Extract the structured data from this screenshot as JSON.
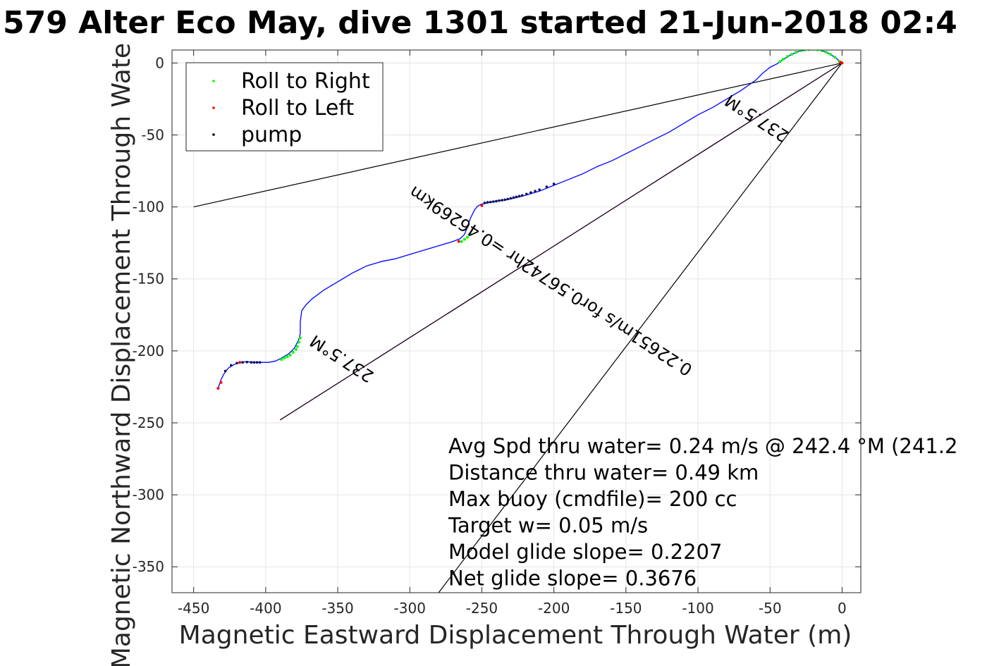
{
  "chart_data": {
    "type": "line",
    "title": "579 Alter Eco May, dive 1301 started 21-Jun-2018 02:4",
    "xlabel": "Magnetic Eastward Displacement Through Water (m)",
    "ylabel": "Magnetic Northward Displacement Through Wate",
    "xlim": [
      -465,
      13
    ],
    "ylim": [
      -368,
      9
    ],
    "xticks": [
      -450,
      -400,
      -350,
      -300,
      -250,
      -200,
      -150,
      -100,
      -50,
      0
    ],
    "yticks": [
      0,
      -50,
      -100,
      -150,
      -200,
      -250,
      -300,
      -350
    ],
    "grid": true,
    "legend": {
      "placement": "top-left",
      "entries": [
        {
          "label": "Roll to Right",
          "color": "#00ff00"
        },
        {
          "label": "Roll to Left",
          "color": "#ff0000"
        },
        {
          "label": "pump",
          "color": "#000000"
        }
      ]
    },
    "track": {
      "name": "track",
      "color": "#0000ff",
      "points": [
        [
          0,
          0
        ],
        [
          -5,
          4
        ],
        [
          -10,
          7
        ],
        [
          -15,
          9
        ],
        [
          -20,
          9.5
        ],
        [
          -25,
          9.2
        ],
        [
          -30,
          8
        ],
        [
          -35,
          6
        ],
        [
          -40,
          3
        ],
        [
          -43,
          1
        ],
        [
          -45,
          -0.5
        ],
        [
          -50,
          -3
        ],
        [
          -55,
          -7
        ],
        [
          -60,
          -12
        ],
        [
          -70,
          -19
        ],
        [
          -80,
          -25
        ],
        [
          -90,
          -31
        ],
        [
          -100,
          -36
        ],
        [
          -110,
          -42
        ],
        [
          -120,
          -48
        ],
        [
          -130,
          -53
        ],
        [
          -140,
          -58
        ],
        [
          -150,
          -63
        ],
        [
          -160,
          -68
        ],
        [
          -170,
          -72
        ],
        [
          -180,
          -77
        ],
        [
          -190,
          -81
        ],
        [
          -200,
          -85
        ],
        [
          -210,
          -89
        ],
        [
          -220,
          -92
        ],
        [
          -230,
          -94.5
        ],
        [
          -240,
          -96
        ],
        [
          -245,
          -97
        ],
        [
          -250,
          -98
        ],
        [
          -253,
          -99.5
        ],
        [
          -255,
          -102
        ],
        [
          -258,
          -108
        ],
        [
          -260,
          -114
        ],
        [
          -262,
          -119
        ],
        [
          -265,
          -122
        ],
        [
          -270,
          -124
        ],
        [
          -280,
          -127
        ],
        [
          -290,
          -130
        ],
        [
          -300,
          -133
        ],
        [
          -310,
          -136
        ],
        [
          -320,
          -138
        ],
        [
          -330,
          -141
        ],
        [
          -340,
          -146
        ],
        [
          -350,
          -152
        ],
        [
          -360,
          -158
        ],
        [
          -368,
          -164
        ],
        [
          -372,
          -168
        ],
        [
          -375,
          -172
        ],
        [
          -376,
          -180
        ],
        [
          -376,
          -188
        ],
        [
          -377,
          -192
        ],
        [
          -380,
          -198
        ],
        [
          -384,
          -202
        ],
        [
          -389,
          -205
        ],
        [
          -393,
          -207
        ],
        [
          -398,
          -208
        ],
        [
          -403,
          -208
        ],
        [
          -408,
          -208
        ],
        [
          -413,
          -207.5
        ],
        [
          -418,
          -208
        ],
        [
          -422,
          -209.5
        ],
        [
          -426,
          -212
        ],
        [
          -429,
          -216
        ],
        [
          -431,
          -220
        ],
        [
          -433,
          -226
        ]
      ]
    },
    "roll_right_points": [
      [
        -2,
        1
      ],
      [
        -5,
        4
      ],
      [
        -8,
        6
      ],
      [
        -11,
        7.5
      ],
      [
        -14,
        8.5
      ],
      [
        -17,
        9.2
      ],
      [
        -20,
        9.5
      ],
      [
        -23,
        9.3
      ],
      [
        -26,
        9
      ],
      [
        -29,
        8.5
      ],
      [
        -32,
        7.5
      ],
      [
        -35,
        6
      ],
      [
        -38,
        4.5
      ],
      [
        -41,
        2.5
      ],
      [
        -43,
        1
      ],
      [
        -258,
        -119
      ],
      [
        -260,
        -121
      ],
      [
        -262,
        -122.5
      ],
      [
        -264,
        -124
      ],
      [
        -376,
        -191
      ],
      [
        -377,
        -194
      ],
      [
        -378,
        -197
      ],
      [
        -379,
        -199
      ],
      [
        -381,
        -201
      ],
      [
        -383,
        -203
      ],
      [
        -385,
        -204
      ],
      [
        -387,
        -205
      ],
      [
        -389,
        -206
      ]
    ],
    "roll_left_points": [
      [
        -1,
        0.5
      ],
      [
        0,
        0
      ],
      [
        -250,
        -99
      ],
      [
        -266,
        -124
      ],
      [
        -433,
        -226
      ],
      [
        -431,
        -222
      ],
      [
        -418,
        -208
      ]
    ],
    "pump_points": [
      [
        -200,
        -84
      ],
      [
        -205,
        -86
      ],
      [
        -210,
        -88
      ],
      [
        -213,
        -89
      ],
      [
        -216,
        -90
      ],
      [
        -219,
        -91
      ],
      [
        -222,
        -92
      ],
      [
        -224,
        -92.5
      ],
      [
        -226,
        -93
      ],
      [
        -228,
        -93.5
      ],
      [
        -230,
        -94
      ],
      [
        -232,
        -94.5
      ],
      [
        -234,
        -95
      ],
      [
        -236,
        -95.3
      ],
      [
        -238,
        -95.6
      ],
      [
        -240,
        -96
      ],
      [
        -242,
        -96.3
      ],
      [
        -244,
        -96.6
      ],
      [
        -246,
        -96.8
      ],
      [
        -248,
        -97.2
      ],
      [
        -404,
        -208
      ],
      [
        -406,
        -208
      ],
      [
        -408,
        -208
      ],
      [
        -410,
        -208
      ],
      [
        -413,
        -207.8
      ],
      [
        -416,
        -208
      ],
      [
        -420,
        -208.5
      ],
      [
        -424,
        -210
      ],
      [
        -428,
        -214
      ]
    ],
    "reference_lines": [
      {
        "name": "heading line",
        "color": "#000000",
        "points": [
          [
            0,
            0
          ],
          [
            -450,
            -100
          ]
        ]
      },
      {
        "name": "heading line",
        "color": "#000000",
        "points": [
          [
            0,
            0
          ],
          [
            -280,
            -368
          ]
        ]
      },
      {
        "name": "net glide line",
        "color": "#ff00ff",
        "points": [
          [
            0,
            0
          ],
          [
            -390,
            -248
          ]
        ]
      },
      {
        "name": "net glide line",
        "color": "#000000",
        "points": [
          [
            0,
            0
          ],
          [
            -390,
            -248
          ]
        ]
      }
    ],
    "annotations": [
      {
        "text": "237.5°M",
        "at": [
          -57,
          -35
        ],
        "rotate_deg": 213,
        "size": 24
      },
      {
        "text": "0.22651m/s for0.56742hr =0.46269km",
        "at": [
          -200,
          -148
        ],
        "rotate_deg": 213,
        "size": 24
      },
      {
        "text": "237.5°M",
        "at": [
          -345,
          -202
        ],
        "rotate_deg": 213,
        "size": 24
      }
    ],
    "info_lines": [
      "Avg Spd thru water=  0.24 m/s @ 242.4 °M (241.2",
      "Distance thru water=  0.49 km",
      "Max buoy (cmdfile)= 200 cc",
      "Target w= 0.05 m/s",
      "Model glide slope= 0.2207",
      "Net glide slope= 0.3676"
    ]
  }
}
